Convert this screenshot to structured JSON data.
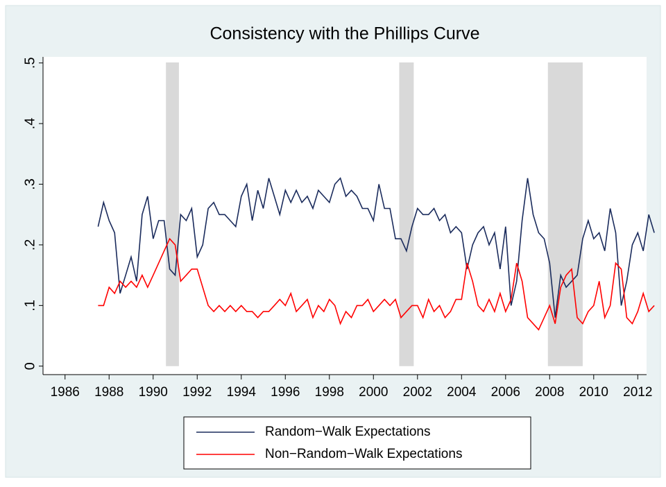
{
  "chart_data": {
    "type": "line",
    "title": "Consistency with the Phillips Curve",
    "x": [
      1987.5,
      1987.75,
      1988,
      1988.25,
      1988.5,
      1988.75,
      1989,
      1989.25,
      1989.5,
      1989.75,
      1990,
      1990.25,
      1990.5,
      1990.75,
      1991,
      1991.25,
      1991.5,
      1991.75,
      1992,
      1992.25,
      1992.5,
      1992.75,
      1993,
      1993.25,
      1993.5,
      1993.75,
      1994,
      1994.25,
      1994.5,
      1994.75,
      1995,
      1995.25,
      1995.5,
      1995.75,
      1996,
      1996.25,
      1996.5,
      1996.75,
      1997,
      1997.25,
      1997.5,
      1997.75,
      1998,
      1998.25,
      1998.5,
      1998.75,
      1999,
      1999.25,
      1999.5,
      1999.75,
      2000,
      2000.25,
      2000.5,
      2000.75,
      2001,
      2001.25,
      2001.5,
      2001.75,
      2002,
      2002.25,
      2002.5,
      2002.75,
      2003,
      2003.25,
      2003.5,
      2003.75,
      2004,
      2004.25,
      2004.5,
      2004.75,
      2005,
      2005.25,
      2005.5,
      2005.75,
      2006,
      2006.25,
      2006.5,
      2006.75,
      2007,
      2007.25,
      2007.5,
      2007.75,
      2008,
      2008.25,
      2008.5,
      2008.75,
      2009,
      2009.25,
      2009.5,
      2009.75,
      2010,
      2010.25,
      2010.5,
      2010.75,
      2011,
      2011.25,
      2011.5,
      2011.75,
      2012,
      2012.25,
      2012.5,
      2012.75
    ],
    "series": [
      {
        "name": "Random−Walk Expectations",
        "color": "#1a2b5c",
        "values": [
          0.23,
          0.27,
          0.24,
          0.22,
          0.12,
          0.15,
          0.18,
          0.14,
          0.25,
          0.28,
          0.21,
          0.24,
          0.24,
          0.16,
          0.15,
          0.25,
          0.24,
          0.26,
          0.18,
          0.2,
          0.26,
          0.27,
          0.25,
          0.25,
          0.24,
          0.23,
          0.28,
          0.3,
          0.24,
          0.29,
          0.26,
          0.31,
          0.28,
          0.25,
          0.29,
          0.27,
          0.29,
          0.27,
          0.28,
          0.26,
          0.29,
          0.28,
          0.27,
          0.3,
          0.31,
          0.28,
          0.29,
          0.28,
          0.26,
          0.26,
          0.24,
          0.3,
          0.26,
          0.26,
          0.21,
          0.21,
          0.19,
          0.23,
          0.26,
          0.25,
          0.25,
          0.26,
          0.24,
          0.25,
          0.22,
          0.23,
          0.22,
          0.16,
          0.2,
          0.22,
          0.23,
          0.2,
          0.22,
          0.16,
          0.23,
          0.1,
          0.14,
          0.24,
          0.31,
          0.25,
          0.22,
          0.21,
          0.17,
          0.08,
          0.15,
          0.13,
          0.14,
          0.15,
          0.21,
          0.24,
          0.21,
          0.22,
          0.19,
          0.26,
          0.22,
          0.1,
          0.14,
          0.2,
          0.22,
          0.19,
          0.25,
          0.22
        ]
      },
      {
        "name": "Non−Random−Walk Expectations",
        "color": "#ff0000",
        "values": [
          0.1,
          0.1,
          0.13,
          0.12,
          0.14,
          0.13,
          0.14,
          0.13,
          0.15,
          0.13,
          0.15,
          0.17,
          0.19,
          0.21,
          0.2,
          0.14,
          0.15,
          0.16,
          0.16,
          0.13,
          0.1,
          0.09,
          0.1,
          0.09,
          0.1,
          0.09,
          0.1,
          0.09,
          0.09,
          0.08,
          0.09,
          0.09,
          0.1,
          0.11,
          0.1,
          0.12,
          0.09,
          0.1,
          0.11,
          0.08,
          0.1,
          0.09,
          0.11,
          0.1,
          0.07,
          0.09,
          0.08,
          0.1,
          0.1,
          0.11,
          0.09,
          0.1,
          0.11,
          0.1,
          0.11,
          0.08,
          0.09,
          0.1,
          0.1,
          0.08,
          0.11,
          0.09,
          0.1,
          0.08,
          0.09,
          0.11,
          0.11,
          0.17,
          0.14,
          0.1,
          0.09,
          0.11,
          0.09,
          0.12,
          0.09,
          0.11,
          0.17,
          0.14,
          0.08,
          0.07,
          0.06,
          0.08,
          0.1,
          0.07,
          0.13,
          0.15,
          0.16,
          0.08,
          0.07,
          0.09,
          0.1,
          0.14,
          0.08,
          0.1,
          0.17,
          0.16,
          0.08,
          0.07,
          0.09,
          0.12,
          0.09,
          0.1
        ]
      }
    ],
    "shaded": [
      [
        1990.58,
        1991.17
      ],
      [
        2001.17,
        2001.83
      ],
      [
        2007.92,
        2009.5
      ]
    ],
    "shade_color": "#d9d9d9",
    "xlim": [
      1985,
      2012.4
    ],
    "xticks": [
      1986,
      1988,
      1990,
      1992,
      1994,
      1996,
      1998,
      2000,
      2002,
      2004,
      2006,
      2008,
      2010,
      2012
    ],
    "ylim": [
      -0.014,
      0.51
    ],
    "yticks": [
      0,
      {
        "value": 0.1,
        "label": ".1"
      },
      {
        "value": 0.2,
        "label": ".2"
      },
      {
        "value": 0.3,
        "label": ".3"
      },
      {
        "value": 0.4,
        "label": ".4"
      },
      {
        "value": 0.5,
        "label": ".5"
      }
    ],
    "grid": false,
    "legend": "bottom"
  }
}
